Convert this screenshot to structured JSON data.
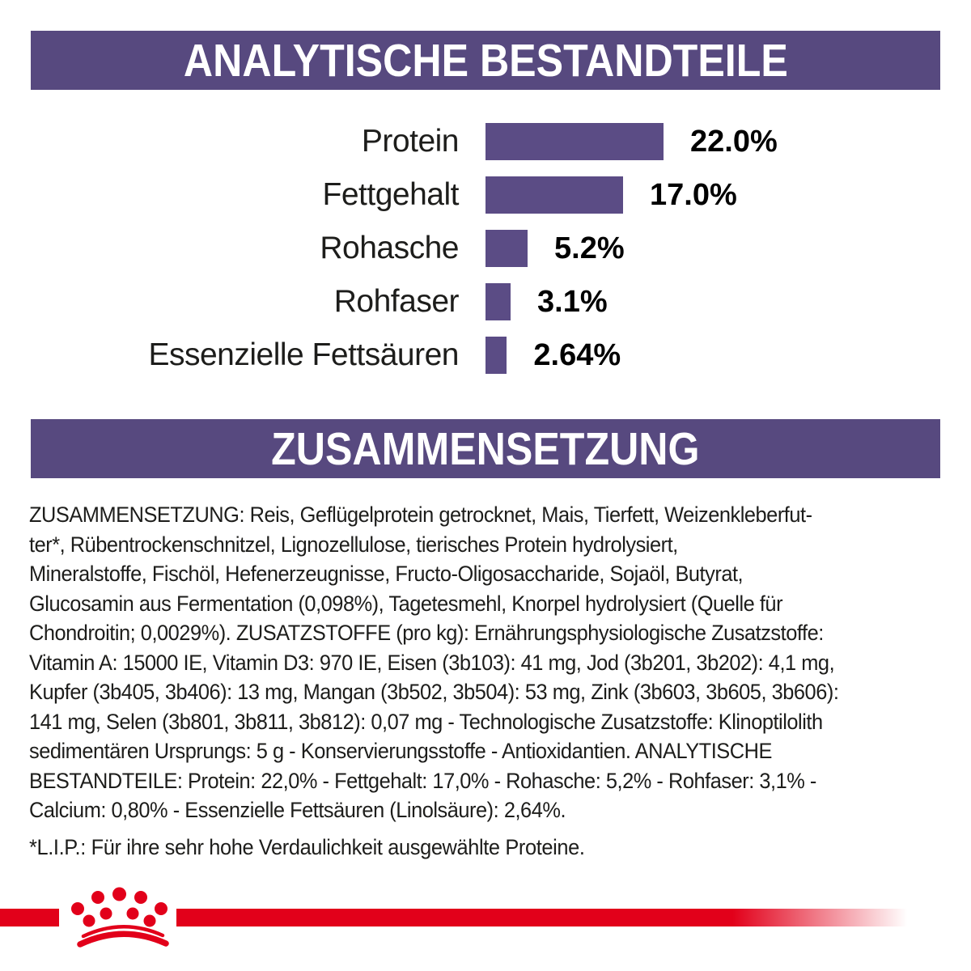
{
  "colors": {
    "purple": "#57497F",
    "bar-purple": "#5B4C85",
    "red": "#E2001A",
    "text": "#1D1D1B",
    "banner-text": "#FFFFFF",
    "background": "#FFFFFF"
  },
  "sections": {
    "analytic": {
      "title": "ANALYTISCHE BESTANDTEILE"
    },
    "composition": {
      "title": "ZUSAMMENSETZUNG"
    }
  },
  "chart_data": {
    "type": "bar",
    "orientation": "horizontal",
    "title": "ANALYTISCHE BESTANDTEILE",
    "categories": [
      "Protein",
      "Fettgehalt",
      "Rohasche",
      "Rohfaser",
      "Essenzielle Fettsäuren"
    ],
    "values": [
      22.0,
      17.0,
      5.2,
      3.1,
      2.64
    ],
    "value_labels": [
      "22.0%",
      "17.0%",
      "5.2%",
      "3.1%",
      "2.64%"
    ],
    "unit": "%",
    "xlim": [
      0,
      25
    ],
    "grid": false,
    "legend": false,
    "bar_color": "#5B4C85",
    "value_label_position": "right-of-bar"
  },
  "composition": {
    "lines": [
      "ZUSAMMENSETZUNG: Reis, Geflügelprotein getrocknet, Mais, Tierfett, Weizenkleberfut-",
      "ter*, Rübentrockenschnitzel, Lignozellulose, tierisches Protein hydrolysiert,",
      "Mineralstoffe, Fischöl, Hefenerzeugnisse, Fructo-Oligosaccharide, Sojaöl, Butyrat,",
      "Glucosamin aus Fermentation (0,098%), Tagetesmehl, Knorpel hydrolysiert (Quelle für",
      "Chondroitin; 0,0029%). ZUSATZSTOFFE (pro kg): Ernährungsphysiologische Zusatzstoffe:",
      "Vitamin A: 15000 IE, Vitamin D3: 970 IE, Eisen (3b103): 41 mg, Jod (3b201, 3b202): 4,1 mg,",
      "Kupfer (3b405, 3b406): 13 mg, Mangan (3b502, 3b504): 53 mg, Zink (3b603, 3b605, 3b606):",
      "141 mg, Selen (3b801, 3b811, 3b812): 0,07 mg - Technologische Zusatzstoffe: Klinoptilolith",
      "sedimentären Ursprungs: 5 g - Konservierungsstoffe - Antioxidantien. ANALYTISCHE",
      "BESTANDTEILE: Protein: 22,0% - Fettgehalt: 17,0% - Rohasche: 5,2% - Rohfaser: 3,1% -",
      "Calcium: 0,80% - Essenzielle Fettsäuren (Linolsäure): 2,64%."
    ]
  },
  "footnote": "*L.I.P.: Für ihre sehr hohe Verdaulichkeit ausgewählte Proteine.",
  "footer": {
    "logo": "royal-canin-crown-icon"
  }
}
